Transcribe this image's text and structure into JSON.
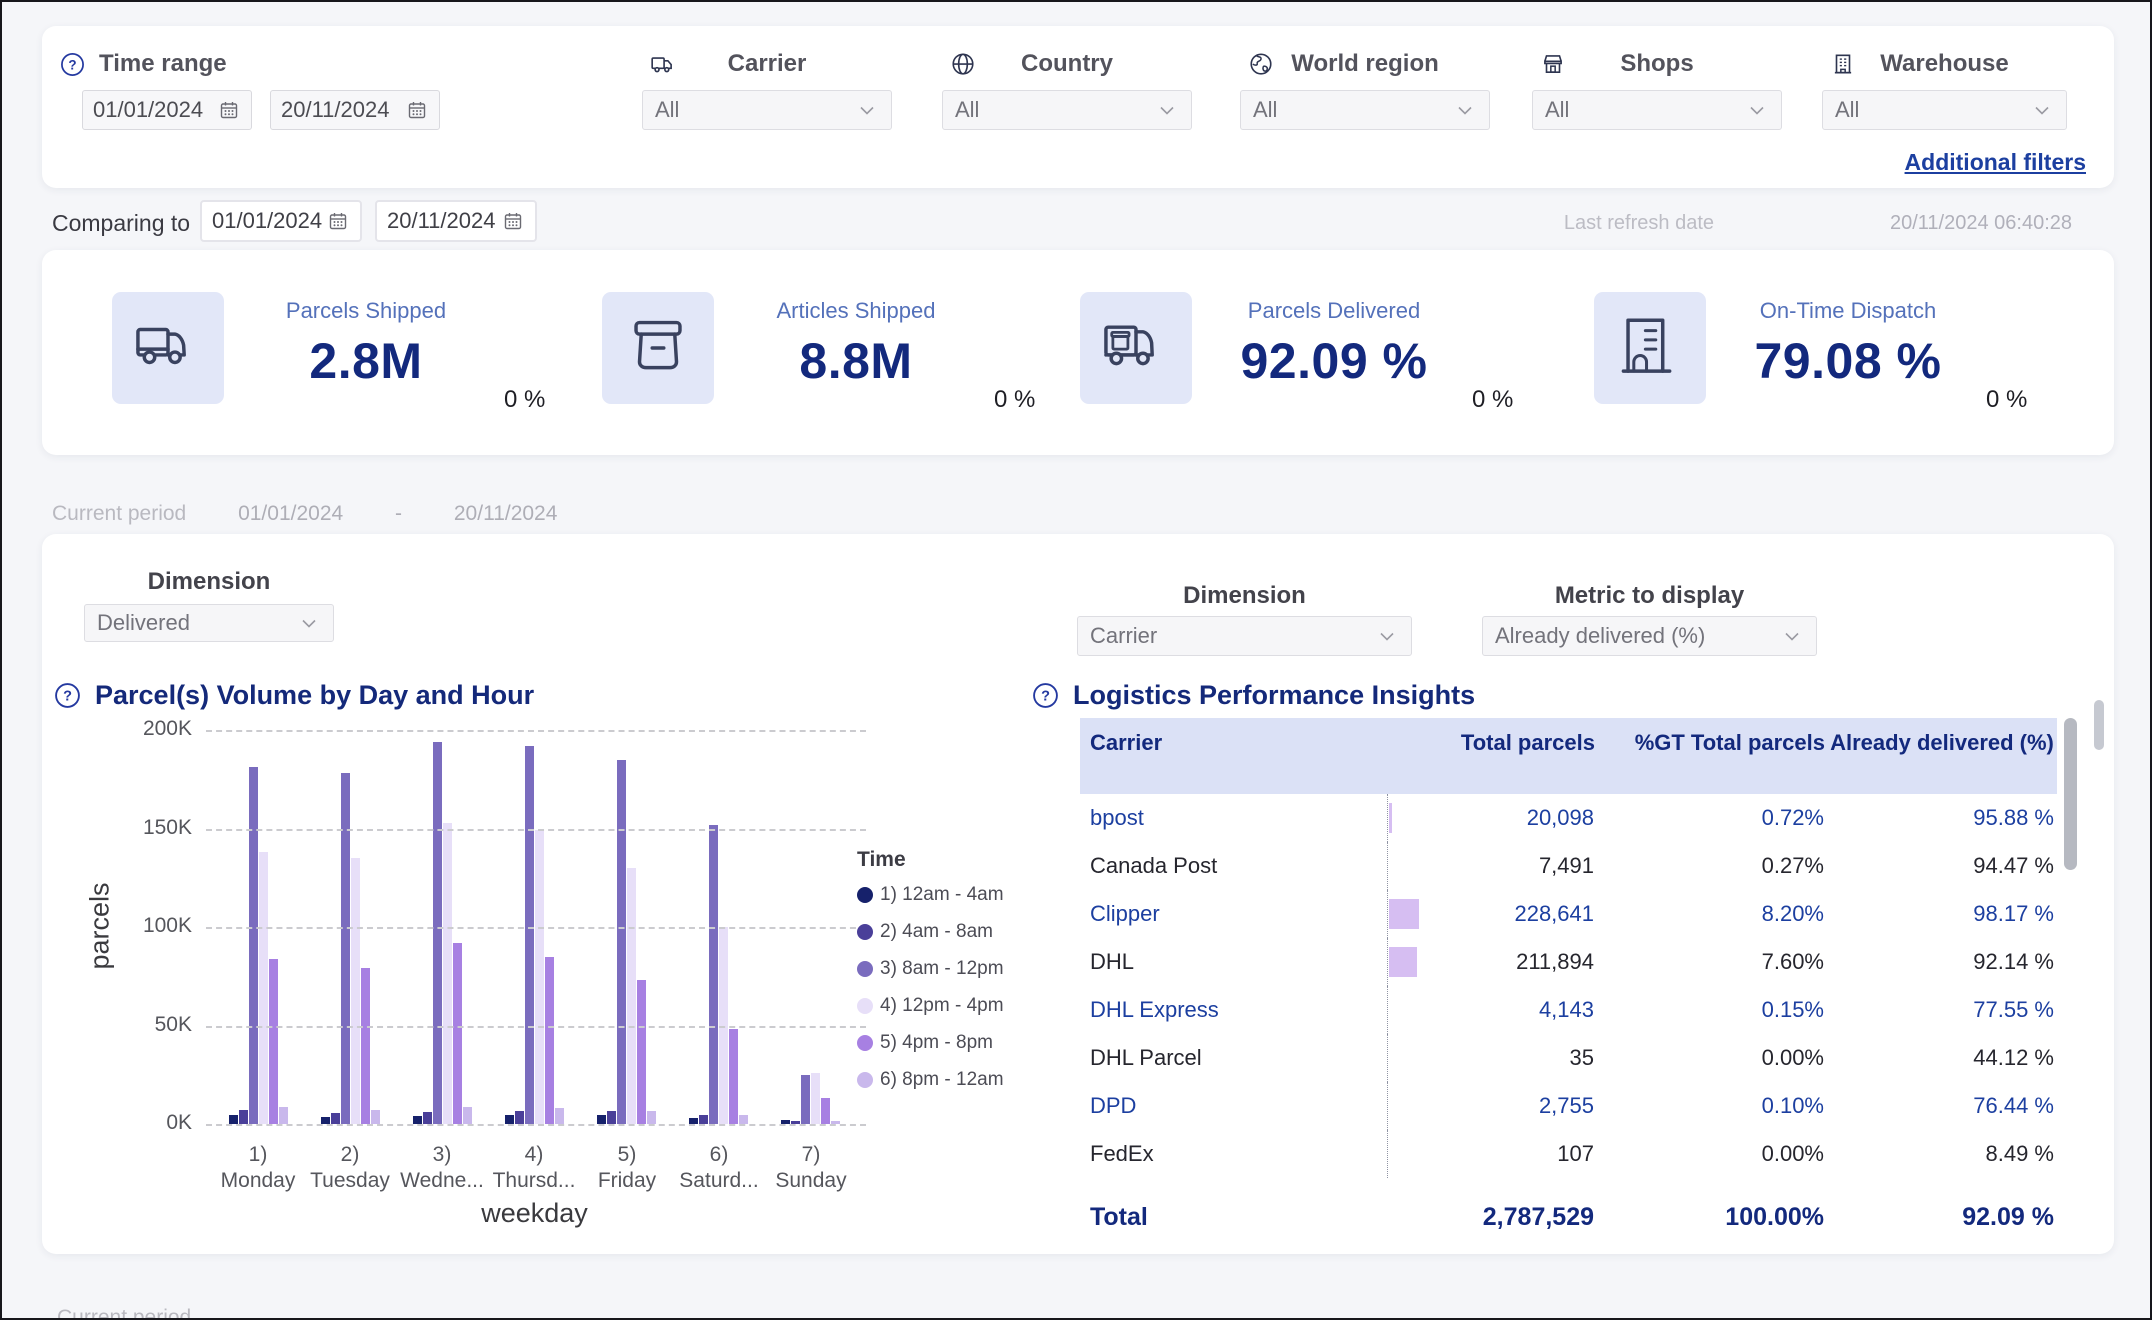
{
  "filters": {
    "time_range": {
      "label": "Time range",
      "from": "01/01/2024",
      "to": "20/11/2024"
    },
    "dropdowns": [
      {
        "label": "Carrier",
        "icon": "truck-icon",
        "value": "All"
      },
      {
        "label": "Country",
        "icon": "globe-icon",
        "value": "All"
      },
      {
        "label": "World region",
        "icon": "world-icon",
        "value": "All"
      },
      {
        "label": "Shops",
        "icon": "shop-icon",
        "value": "All"
      },
      {
        "label": "Warehouse",
        "icon": "building-icon",
        "value": "All"
      }
    ],
    "additional_filters_label": "Additional filters"
  },
  "comparing": {
    "label": "Comparing to",
    "from": "01/01/2024",
    "to": "20/11/2024"
  },
  "last_refresh": {
    "label": "Last refresh date",
    "value": "20/11/2024 06:40:28"
  },
  "kpis": [
    {
      "label": "Parcels Shipped",
      "value": "2.8M",
      "delta": "0 %",
      "icon": "truck-icon"
    },
    {
      "label": "Articles Shipped",
      "value": "8.8M",
      "delta": "0 %",
      "icon": "box-icon"
    },
    {
      "label": "Parcels Delivered",
      "value": "92.09 %",
      "delta": "0 %",
      "icon": "delivery-truck-icon"
    },
    {
      "label": "On-Time Dispatch",
      "value": "79.08 %",
      "delta": "0 %",
      "icon": "warehouse-building-icon"
    }
  ],
  "current_period": {
    "label": "Current period",
    "from": "01/01/2024",
    "sep": "-",
    "to": "20/11/2024"
  },
  "left_panel": {
    "dimension_label": "Dimension",
    "dimension_value": "Delivered"
  },
  "right_panel": {
    "dimension_label": "Dimension",
    "dimension_value": "Carrier",
    "metric_label": "Metric to display",
    "metric_value": "Already delivered (%)",
    "table_title": "Logistics Performance Insights"
  },
  "chart_data": {
    "type": "bar",
    "title": "Parcel(s) Volume by Day and Hour",
    "xlabel": "weekday",
    "ylabel": "parcels",
    "ylim": [
      0,
      200000
    ],
    "yticks": [
      "0K",
      "50K",
      "100K",
      "150K",
      "200K"
    ],
    "grid": "dashed-horizontal",
    "legend_position": "right",
    "legend_title": "Time",
    "categories": [
      {
        "line1": "1)",
        "line2": "Monday"
      },
      {
        "line1": "2)",
        "line2": "Tuesday"
      },
      {
        "line1": "3)",
        "line2": "Wedne..."
      },
      {
        "line1": "4)",
        "line2": "Thursd..."
      },
      {
        "line1": "5)",
        "line2": "Friday"
      },
      {
        "line1": "6)",
        "line2": "Saturd..."
      },
      {
        "line1": "7)",
        "line2": "Sunday"
      }
    ],
    "series": [
      {
        "name": "1) 12am - 4am",
        "color": "#16216b",
        "values": [
          4500,
          3500,
          4000,
          4500,
          4500,
          3000,
          2000
        ]
      },
      {
        "name": "2) 4am - 8am",
        "color": "#4a3f99",
        "values": [
          7000,
          5500,
          6000,
          6500,
          6500,
          4500,
          1500
        ]
      },
      {
        "name": "3) 8am - 12pm",
        "color": "#7a6cbe",
        "values": [
          181000,
          178000,
          194000,
          192000,
          185000,
          152000,
          25000
        ]
      },
      {
        "name": "4) 12pm - 4pm",
        "color": "#e7dff8",
        "values": [
          138000,
          135000,
          153000,
          149000,
          130000,
          100000,
          26000
        ]
      },
      {
        "name": "5) 4pm - 8pm",
        "color": "#a780e2",
        "values": [
          84000,
          79000,
          92000,
          85000,
          73000,
          48000,
          13000
        ]
      },
      {
        "name": "6) 8pm - 12am",
        "color": "#c9b8ec",
        "values": [
          8500,
          7000,
          8500,
          8000,
          6500,
          4500,
          1500
        ]
      }
    ]
  },
  "table": {
    "columns": [
      "Carrier",
      "Total parcels",
      "%GT Total parcels",
      "Already delivered (%)"
    ],
    "rows": [
      {
        "carrier": "bpost",
        "total": "20,098",
        "total_num": 20098,
        "pct": "0.72%",
        "delivered": "95.88 %"
      },
      {
        "carrier": "Canada Post",
        "total": "7,491",
        "total_num": 7491,
        "pct": "0.27%",
        "delivered": "94.47 %"
      },
      {
        "carrier": "Clipper",
        "total": "228,641",
        "total_num": 228641,
        "pct": "8.20%",
        "delivered": "98.17 %"
      },
      {
        "carrier": "DHL",
        "total": "211,894",
        "total_num": 211894,
        "pct": "7.60%",
        "delivered": "92.14 %"
      },
      {
        "carrier": "DHL Express",
        "total": "4,143",
        "total_num": 4143,
        "pct": "0.15%",
        "delivered": "77.55 %"
      },
      {
        "carrier": "DHL Parcel",
        "total": "35",
        "total_num": 35,
        "pct": "0.00%",
        "delivered": "44.12 %"
      },
      {
        "carrier": "DPD",
        "total": "2,755",
        "total_num": 2755,
        "pct": "0.10%",
        "delivered": "76.44 %"
      },
      {
        "carrier": "FedEx",
        "total": "107",
        "total_num": 107,
        "pct": "0.00%",
        "delivered": "8.49 %"
      }
    ],
    "total_row": {
      "carrier": "Total",
      "total": "2,787,529",
      "pct": "100.00%",
      "delivered": "92.09 %"
    }
  },
  "footer": {
    "current_period_label": "Current period"
  },
  "colors": {
    "accent_navy": "#13297d",
    "link_blue": "#1c3fa0",
    "kpi_label_blue": "#5471ba",
    "table_header_bg": "#dbe1f6",
    "data_bar": "#d6bef2",
    "kpi_tile_bg": "#e2e7f8"
  }
}
